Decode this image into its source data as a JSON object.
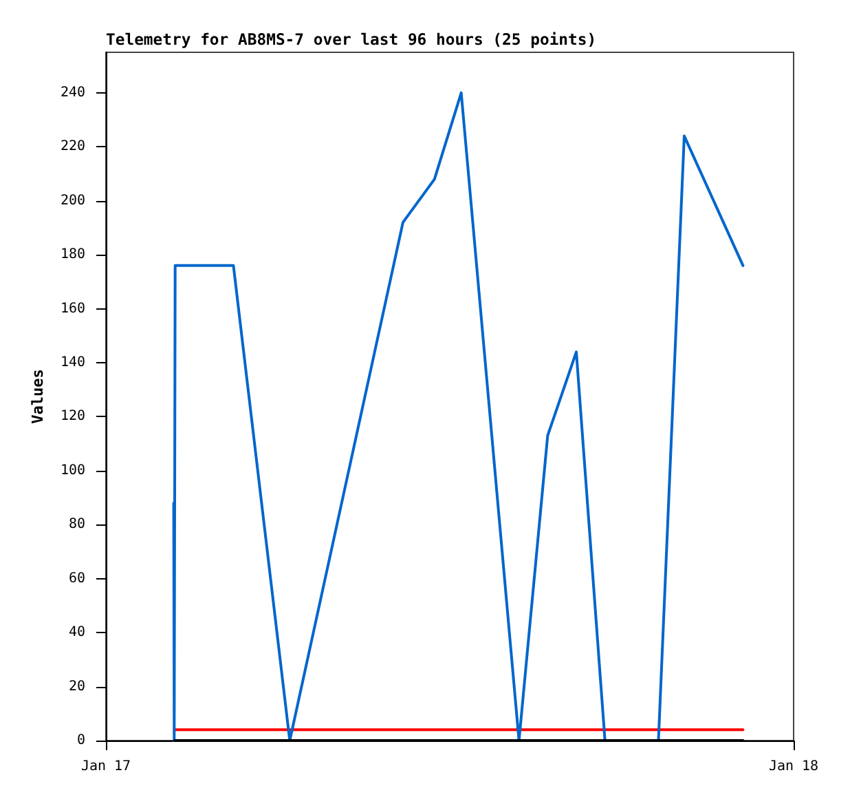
{
  "chart_data": {
    "type": "line",
    "title": "Telemetry for AB8MS-7 over last 96 hours (25 points)",
    "ylabel": "Values",
    "xlim": [
      "--01-17",
      "--01-18"
    ],
    "xticks": [
      {
        "value": "--01-17",
        "label": "Jan 17"
      },
      {
        "value": "--01-18",
        "label": "Jan 18"
      }
    ],
    "ylim": [
      0,
      255
    ],
    "yticks": [
      0,
      20,
      40,
      60,
      80,
      100,
      120,
      140,
      160,
      180,
      200,
      220,
      240
    ],
    "grid": false,
    "marker": "none",
    "line_style": "solid",
    "series": [
      {
        "color": "#ff0000",
        "x": [
          "--01-17T02:24",
          "--01-17T22:14"
        ],
        "values": [
          4,
          4
        ]
      },
      {
        "color": "#0066cc",
        "x": [
          "--01-17T02:22",
          "--01-17T02:23",
          "--01-17T02:25",
          "--01-17T04:27",
          "--01-17T06:25",
          "--01-17T10:22",
          "--01-17T11:28",
          "--01-17T12:24",
          "--01-17T14:25",
          "--01-17T15:25",
          "--01-17T16:25",
          "--01-17T17:25",
          "--01-17T19:17",
          "--01-17T20:11",
          "--01-17T22:14"
        ],
        "values": [
          88,
          0,
          176,
          176,
          0,
          192,
          208,
          240,
          0,
          113,
          144,
          0,
          0,
          224,
          176
        ]
      },
      {
        "color": "#000000",
        "x": [
          "--01-17T02:24",
          "--01-17T22:14"
        ],
        "values": [
          0,
          0
        ]
      }
    ]
  }
}
